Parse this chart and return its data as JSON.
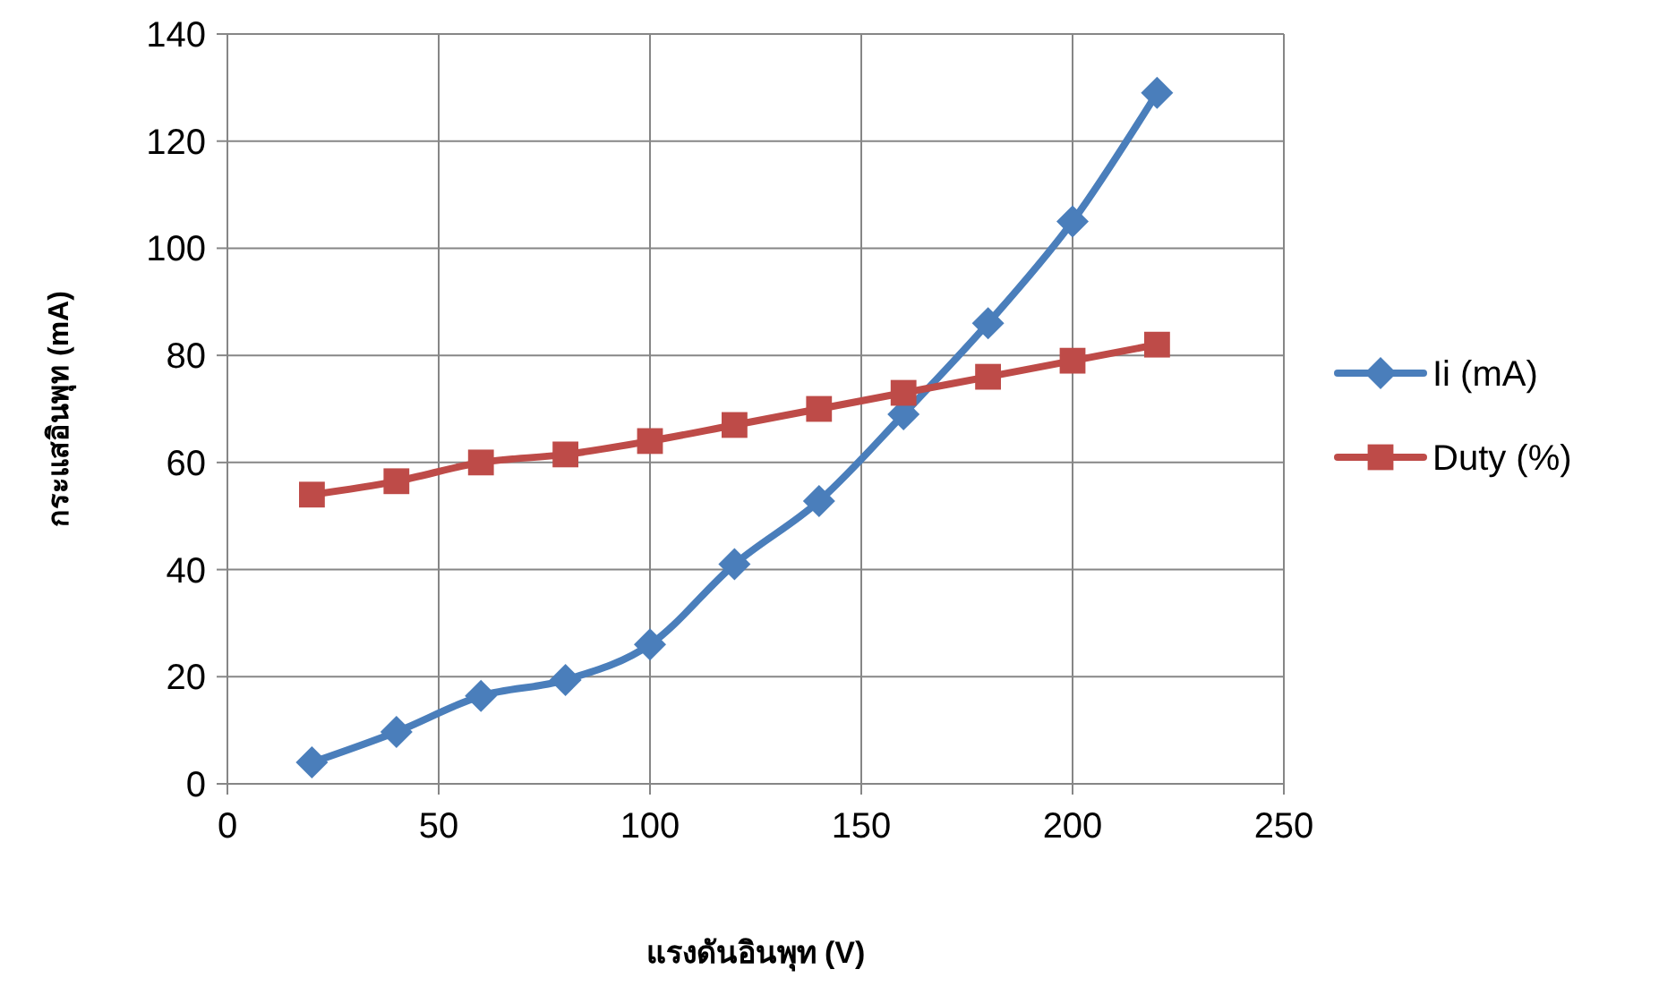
{
  "chart_data": {
    "type": "line",
    "xlabel": "แรงดันอินพุท (V)",
    "ylabel": "กระแสอินพุท (mA)",
    "x": [
      20,
      40,
      60,
      80,
      100,
      120,
      140,
      160,
      180,
      200,
      220
    ],
    "series": [
      {
        "name": "Ii (mA)",
        "color": "#4a7ebb",
        "marker": "diamond",
        "values": [
          4,
          9.7,
          16.4,
          19.4,
          26,
          41,
          52.8,
          69,
          86,
          105,
          129
        ]
      },
      {
        "name": "Duty (%)",
        "color": "#be4b48",
        "marker": "square",
        "values": [
          54,
          56.5,
          60,
          61.5,
          64,
          67,
          70,
          73,
          76,
          79,
          82
        ]
      }
    ],
    "xlim": [
      0,
      250
    ],
    "xticks": [
      0,
      50,
      100,
      150,
      200,
      250
    ],
    "ylim": [
      0,
      140
    ],
    "yticks": [
      0,
      20,
      40,
      60,
      80,
      100,
      120,
      140
    ],
    "grid": true,
    "legend": "right",
    "line_style": "solid"
  }
}
